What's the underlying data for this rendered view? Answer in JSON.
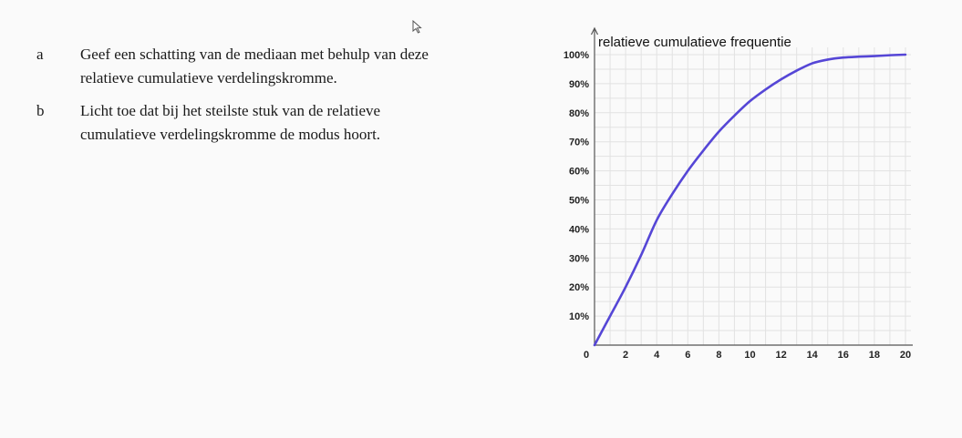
{
  "questions": [
    {
      "letter": "a",
      "text_line1": "Geef een schatting van de mediaan met behulp van deze",
      "text_line2": "relatieve cumulatieve verdelingskromme."
    },
    {
      "letter": "b",
      "text_line1": "Licht toe dat bij het steilste stuk van de relatieve",
      "text_line2": "cumulatieve verdelingskromme de modus hoort."
    }
  ],
  "colors": {
    "curve": "#5546d6",
    "grid": "#e2e2e2",
    "axis": "#555555"
  },
  "chart_data": {
    "type": "line",
    "title": "",
    "ylabel": "relatieve cumulatieve frequentie",
    "xlabel": "",
    "xlim": [
      0,
      20
    ],
    "ylim": [
      0,
      100
    ],
    "grid": true,
    "x_ticks": [
      0,
      2,
      4,
      6,
      8,
      10,
      12,
      14,
      16,
      18,
      20
    ],
    "x_tick_labels": [
      "0",
      "2",
      "4",
      "6",
      "8",
      "10",
      "12",
      "14",
      "16",
      "18",
      "20"
    ],
    "y_ticks": [
      10,
      20,
      30,
      40,
      50,
      60,
      70,
      80,
      90,
      100
    ],
    "y_tick_labels": [
      "10%",
      "20%",
      "30%",
      "40%",
      "50%",
      "60%",
      "70%",
      "80%",
      "90%",
      "100%"
    ],
    "series": [
      {
        "x": [
          0,
          1,
          2,
          3,
          4,
          5,
          6,
          7,
          8,
          9,
          10,
          11,
          12,
          13,
          14,
          15,
          16,
          17,
          18,
          19,
          20
        ],
        "y": [
          0,
          10,
          20,
          31,
          43,
          52,
          60,
          67,
          73.5,
          79,
          84,
          88,
          91.5,
          94.5,
          97,
          98.3,
          99,
          99.3,
          99.5,
          99.8,
          100
        ]
      }
    ]
  }
}
